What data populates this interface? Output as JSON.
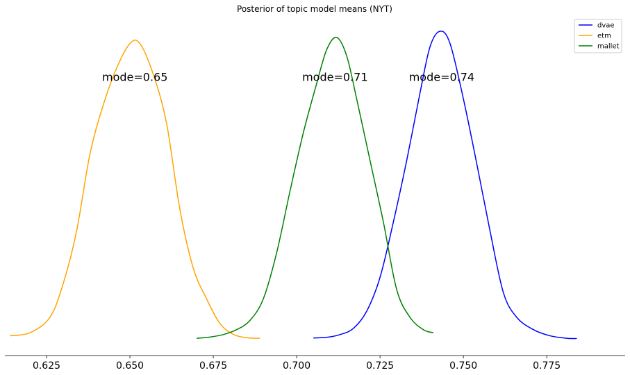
{
  "chart_data": {
    "type": "line",
    "title": "Posterior of topic model means (NYT)",
    "xlabel": "",
    "ylabel": "",
    "xlim": [
      0.6125,
      0.7985
    ],
    "ylim": [
      0,
      1
    ],
    "grid": false,
    "legend_position": "top-right",
    "x_ticks": [
      0.625,
      0.65,
      0.675,
      0.7,
      0.725,
      0.75,
      0.775
    ],
    "x_tick_labels": [
      "0.625",
      "0.650",
      "0.675",
      "0.700",
      "0.725",
      "0.750",
      "0.775"
    ],
    "series": [
      {
        "name": "dvae",
        "color": "#0000ff",
        "x": [
          0.705,
          0.709,
          0.713,
          0.717,
          0.721,
          0.725,
          0.729,
          0.733,
          0.737,
          0.74,
          0.743,
          0.746,
          0.75,
          0.754,
          0.758,
          0.762,
          0.766,
          0.771,
          0.776,
          0.781,
          0.784
        ],
        "y": [
          0.003,
          0.005,
          0.014,
          0.034,
          0.09,
          0.2,
          0.38,
          0.58,
          0.8,
          0.95,
          1.0,
          0.96,
          0.78,
          0.57,
          0.35,
          0.15,
          0.07,
          0.03,
          0.01,
          0.002,
          0.001
        ]
      },
      {
        "name": "etm",
        "color": "#ffa500",
        "x": [
          0.614,
          0.62,
          0.626,
          0.63,
          0.634,
          0.638,
          0.642,
          0.646,
          0.65,
          0.653,
          0.657,
          0.661,
          0.665,
          0.669,
          0.673,
          0.677,
          0.681,
          0.685,
          0.689
        ],
        "y": [
          0.01,
          0.02,
          0.07,
          0.18,
          0.35,
          0.6,
          0.76,
          0.88,
          0.96,
          0.96,
          0.86,
          0.7,
          0.42,
          0.23,
          0.13,
          0.05,
          0.015,
          0.004,
          0.002
        ]
      },
      {
        "name": "mallet",
        "color": "#008000",
        "x": [
          0.67,
          0.674,
          0.678,
          0.682,
          0.686,
          0.69,
          0.694,
          0.698,
          0.702,
          0.706,
          0.709,
          0.712,
          0.715,
          0.718,
          0.722,
          0.726,
          0.73,
          0.734,
          0.738,
          0.741
        ],
        "y": [
          0.002,
          0.006,
          0.014,
          0.03,
          0.06,
          0.13,
          0.28,
          0.48,
          0.67,
          0.83,
          0.94,
          0.98,
          0.92,
          0.78,
          0.58,
          0.38,
          0.16,
          0.07,
          0.03,
          0.02
        ]
      }
    ],
    "annotations": [
      {
        "text": "mode=0.65",
        "x": 0.6515,
        "y": 0.85
      },
      {
        "text": "mode=0.71",
        "x": 0.7115,
        "y": 0.85
      },
      {
        "text": "mode=0.74",
        "x": 0.7435,
        "y": 0.85
      }
    ]
  }
}
